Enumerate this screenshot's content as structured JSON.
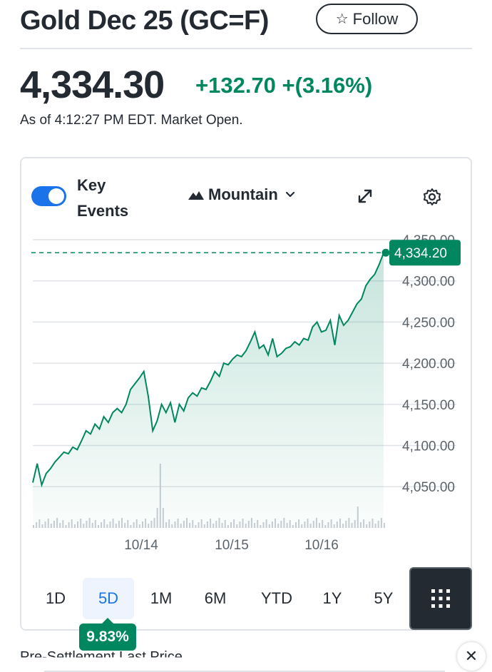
{
  "header": {
    "title": "Gold Dec 25 (GC=F)",
    "follow_label": "Follow",
    "follow_icon": "star-outline-icon"
  },
  "quote": {
    "price": "4,334.30",
    "change": "+132.70 +(3.16%)",
    "as_of": "As of 4:12:27 PM EDT. Market Open.",
    "change_color": "#00875f"
  },
  "controls": {
    "key_events_label": "Key Events",
    "key_events_on": true,
    "chart_type_label": "Mountain",
    "expand_icon": "expand-icon",
    "settings_icon": "gear-icon"
  },
  "chart_data": {
    "type": "area",
    "x_tick_labels": [
      "10/14",
      "10/15",
      "10/16"
    ],
    "y_tick_labels": [
      "4,350.00",
      "4,300.00",
      "4,250.00",
      "4,200.00",
      "4,150.00",
      "4,100.00",
      "4,050.00"
    ],
    "ylim": [
      4030,
      4360
    ],
    "last_price_label": "4,334.20",
    "last_value": 4334.2,
    "series": [
      {
        "values": [
          4055,
          4078,
          4052,
          4066,
          4072,
          4080,
          4086,
          4092,
          4090,
          4098,
          4095,
          4106,
          4118,
          4114,
          4126,
          4120,
          4135,
          4128,
          4140,
          4145,
          4140,
          4150,
          4168,
          4175,
          4182,
          4190,
          4160,
          4118,
          4130,
          4150,
          4140,
          4152,
          4128,
          4150,
          4142,
          4158,
          4164,
          4160,
          4170,
          4168,
          4178,
          4190,
          4184,
          4200,
          4198,
          4205,
          4210,
          4208,
          4215,
          4226,
          4238,
          4218,
          4222,
          4210,
          4230,
          4208,
          4212,
          4218,
          4220,
          4226,
          4222,
          4230,
          4228,
          4244,
          4250,
          4238,
          4240,
          4252,
          4222,
          4258,
          4246,
          4252,
          4262,
          4272,
          4278,
          4294,
          4302,
          4308,
          4320,
          4334
        ]
      }
    ],
    "accent_color": "#00875f"
  },
  "ranges": {
    "items": [
      "1D",
      "5D",
      "1M",
      "6M",
      "YTD",
      "1Y",
      "5Y"
    ],
    "active": "5D",
    "active_change": "9.83%",
    "grid_icon": "grid-icon"
  },
  "bottom": {
    "partial_text": "Pre-Settlement                     Last Price",
    "close_icon": "close-icon"
  }
}
